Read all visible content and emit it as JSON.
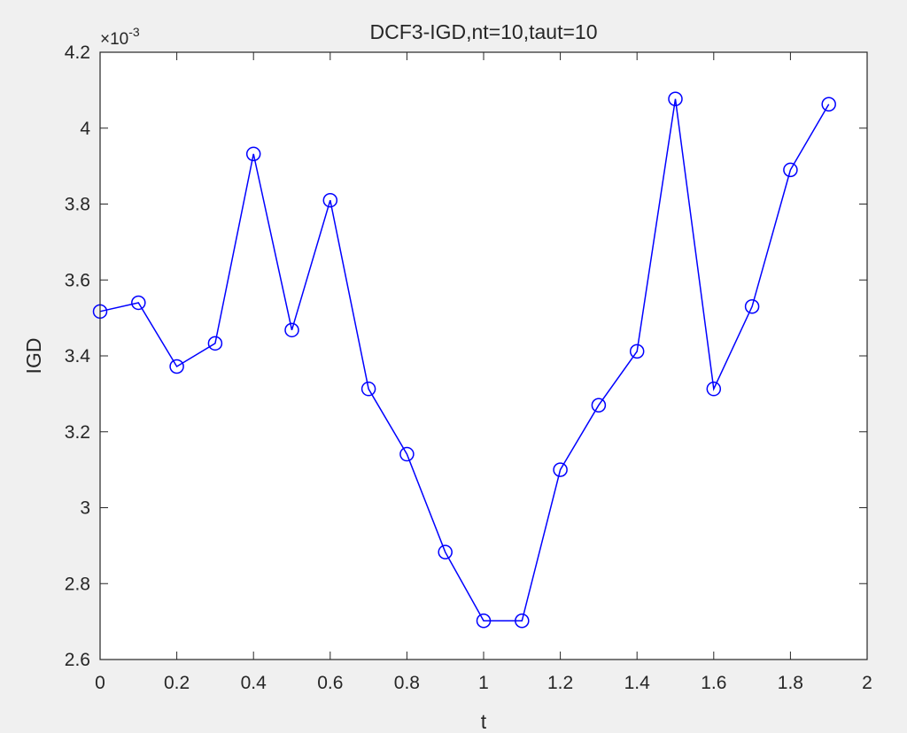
{
  "chart_data": {
    "type": "line",
    "title": "DCF3-IGD,nt=10,taut=10",
    "xlabel": "t",
    "ylabel": "IGD",
    "y_exponent_prefix": "×10",
    "y_exponent_power": "-3",
    "xlim": [
      0,
      2
    ],
    "ylim": [
      2.6,
      4.2
    ],
    "x_ticks": [
      0,
      0.2,
      0.4,
      0.6,
      0.8,
      1,
      1.2,
      1.4,
      1.6,
      1.8,
      2
    ],
    "x_tick_labels": [
      "0",
      "0.2",
      "0.4",
      "0.6",
      "0.8",
      "1",
      "1.2",
      "1.4",
      "1.6",
      "1.8",
      "2"
    ],
    "y_ticks": [
      2.6,
      2.8,
      3.0,
      3.2,
      3.4,
      3.6,
      3.8,
      4.0,
      4.2
    ],
    "y_tick_labels": [
      "2.6",
      "2.8",
      "3",
      "3.2",
      "3.4",
      "3.6",
      "3.8",
      "4",
      "4.2"
    ],
    "grid": false,
    "series": [
      {
        "color": "#0000ff",
        "marker": "circle",
        "x": [
          0,
          0.1,
          0.2,
          0.3,
          0.4,
          0.5,
          0.6,
          0.7,
          0.8,
          0.9,
          1.0,
          1.1,
          1.2,
          1.3,
          1.4,
          1.5,
          1.6,
          1.7,
          1.8,
          1.9
        ],
        "y": [
          3.517,
          3.54,
          3.372,
          3.433,
          3.932,
          3.468,
          3.81,
          3.313,
          3.141,
          2.883,
          2.702,
          2.702,
          3.1,
          3.27,
          3.412,
          4.077,
          3.313,
          3.53,
          3.89,
          4.063
        ]
      }
    ]
  }
}
